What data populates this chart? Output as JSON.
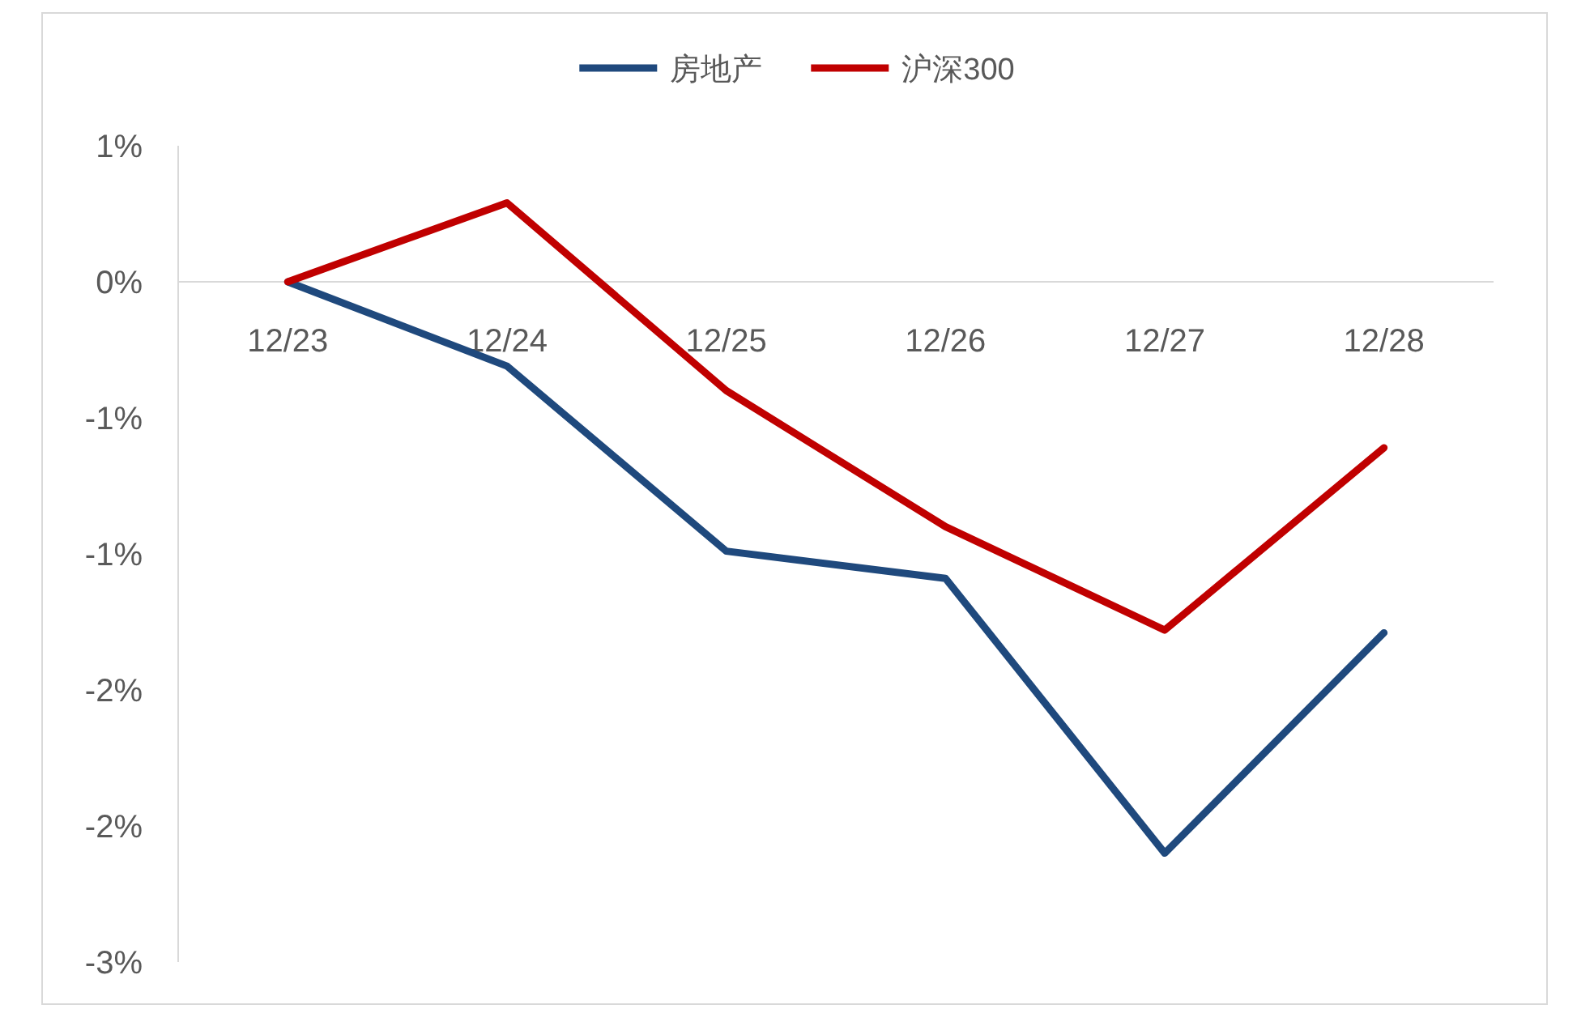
{
  "chart_data": {
    "type": "line",
    "categories": [
      "12/23",
      "12/24",
      "12/25",
      "12/26",
      "12/27",
      "12/28"
    ],
    "series": [
      {
        "name": "房地产",
        "color": "#1f497d",
        "values": [
          0,
          -0.31,
          -0.99,
          -1.09,
          -2.1,
          -1.29
        ]
      },
      {
        "name": "沪深300",
        "color": "#c00000",
        "values": [
          0,
          0.29,
          -0.4,
          -0.9,
          -1.28,
          -0.61
        ]
      }
    ],
    "ylim": [
      -2.5,
      0.5
    ],
    "yticks": [
      {
        "value": 0.5,
        "label": "1%"
      },
      {
        "value": 0,
        "label": "0%"
      },
      {
        "value": -0.5,
        "label": "-1%"
      },
      {
        "value": -1,
        "label": "-1%"
      },
      {
        "value": -1.5,
        "label": "-2%"
      },
      {
        "value": -2,
        "label": "-2%"
      },
      {
        "value": -2.5,
        "label": "-3%"
      }
    ],
    "legend": "top",
    "line_style": "solid"
  }
}
